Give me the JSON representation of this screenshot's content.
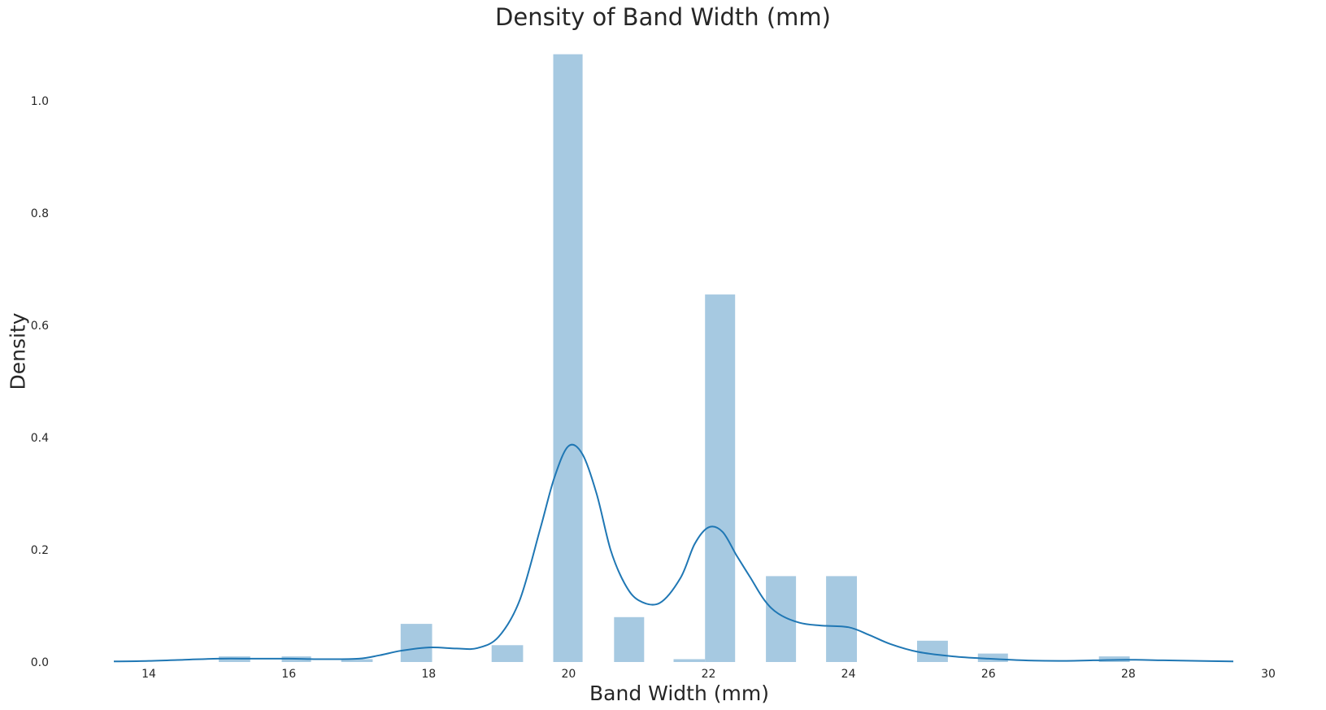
{
  "chart_data": {
    "type": "histogram",
    "title": "Density of Band Width (mm)",
    "xlabel": "Band Width (mm)",
    "ylabel": "Density",
    "xlim": [
      13.5,
      30
    ],
    "ylim": [
      0,
      1.1
    ],
    "xticks": [
      "14",
      "16",
      "18",
      "20",
      "22",
      "24",
      "26",
      "28",
      "30"
    ],
    "yticks": [
      "0.0",
      "0.2",
      "0.4",
      "0.6",
      "0.8",
      "1.0"
    ],
    "grid": false,
    "bar_color": "#a6c9e1",
    "line_color": "#1f77b4",
    "bars": [
      {
        "x0": 15.0,
        "x1": 15.45,
        "density": 0.01
      },
      {
        "x0": 15.9,
        "x1": 16.32,
        "density": 0.01
      },
      {
        "x0": 16.75,
        "x1": 17.2,
        "density": 0.005
      },
      {
        "x0": 17.6,
        "x1": 18.05,
        "density": 0.068
      },
      {
        "x0": 18.9,
        "x1": 19.35,
        "density": 0.03
      },
      {
        "x0": 19.78,
        "x1": 20.2,
        "density": 1.083
      },
      {
        "x0": 20.65,
        "x1": 21.08,
        "density": 0.08
      },
      {
        "x0": 21.5,
        "x1": 21.95,
        "density": 0.005
      },
      {
        "x0": 21.95,
        "x1": 22.38,
        "density": 0.655
      },
      {
        "x0": 22.82,
        "x1": 23.25,
        "density": 0.153
      },
      {
        "x0": 23.68,
        "x1": 24.12,
        "density": 0.153
      },
      {
        "x0": 24.98,
        "x1": 25.42,
        "density": 0.038
      },
      {
        "x0": 25.85,
        "x1": 26.28,
        "density": 0.015
      },
      {
        "x0": 27.58,
        "x1": 28.02,
        "density": 0.01
      }
    ],
    "kde": {
      "x": [
        13.5,
        14.0,
        14.5,
        15.0,
        15.5,
        16.0,
        16.5,
        17.0,
        17.3,
        17.6,
        18.0,
        18.4,
        18.7,
        19.0,
        19.3,
        19.6,
        19.8,
        20.0,
        20.2,
        20.4,
        20.6,
        20.8,
        21.0,
        21.3,
        21.6,
        21.8,
        22.0,
        22.2,
        22.4,
        22.6,
        22.8,
        23.0,
        23.3,
        23.6,
        24.0,
        24.3,
        24.6,
        25.0,
        25.5,
        26.0,
        26.5,
        27.0,
        27.5,
        28.0,
        28.5,
        29.0,
        29.5
      ],
      "y": [
        0.001,
        0.002,
        0.004,
        0.006,
        0.006,
        0.006,
        0.005,
        0.006,
        0.012,
        0.02,
        0.026,
        0.024,
        0.025,
        0.045,
        0.11,
        0.24,
        0.33,
        0.385,
        0.37,
        0.3,
        0.2,
        0.14,
        0.11,
        0.105,
        0.15,
        0.21,
        0.24,
        0.232,
        0.19,
        0.15,
        0.11,
        0.086,
        0.07,
        0.065,
        0.062,
        0.048,
        0.032,
        0.018,
        0.01,
        0.006,
        0.003,
        0.002,
        0.003,
        0.004,
        0.003,
        0.002,
        0.001
      ]
    }
  }
}
